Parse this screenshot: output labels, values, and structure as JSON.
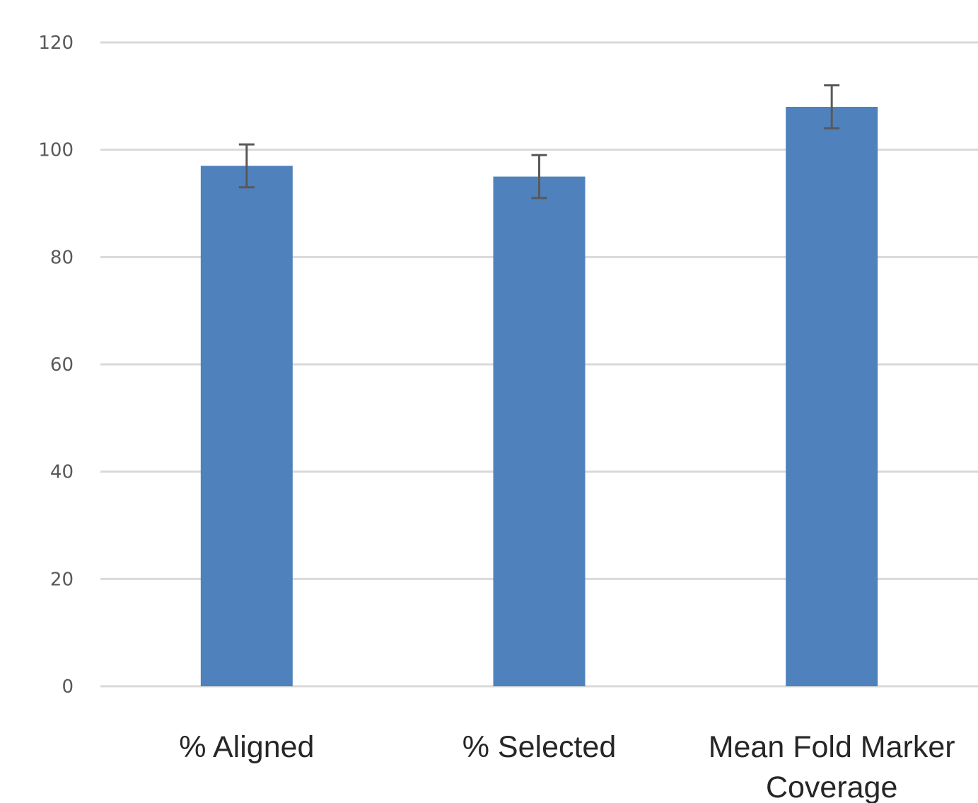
{
  "chart_data": {
    "type": "bar",
    "categories": [
      [
        "% Aligned"
      ],
      [
        "% Selected"
      ],
      [
        "Mean Fold Marker",
        "Coverage"
      ]
    ],
    "values": [
      97,
      95,
      108
    ],
    "error": [
      4,
      4,
      4
    ],
    "ylim": [
      0,
      120
    ],
    "yticks": [
      0,
      20,
      40,
      60,
      80,
      100,
      120
    ],
    "ytick_labels": [
      "0",
      "20",
      "40",
      "60",
      "80",
      "100",
      "120"
    ],
    "title": "",
    "xlabel": "",
    "ylabel": "",
    "grid": true,
    "legend": "none",
    "colors": {
      "bar": "#4f81bd",
      "grid": "#d9d9d9",
      "error_bar": "#595959",
      "tick_text": "#595959",
      "category_text": "#262626"
    }
  }
}
